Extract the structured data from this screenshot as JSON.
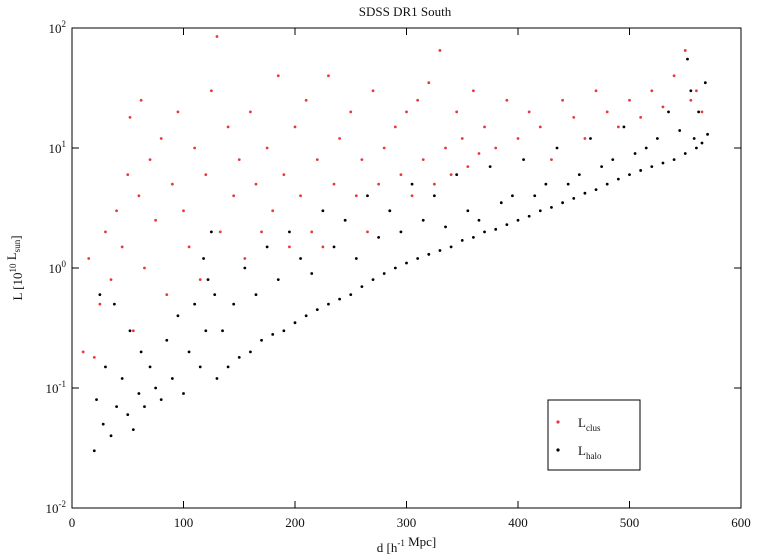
{
  "chart_data": {
    "type": "scatter",
    "title": "SDSS DR1 South",
    "xlabel": [
      {
        "text": "d [h"
      },
      {
        "text": "-1",
        "script": "super"
      },
      {
        "text": " Mpc]"
      }
    ],
    "ylabel": [
      {
        "text": "L [10"
      },
      {
        "text": "10",
        "script": "super"
      },
      {
        "text": " L"
      },
      {
        "text": "sun",
        "script": "sub"
      },
      {
        "text": "]"
      }
    ],
    "xlim": [
      0,
      600
    ],
    "xticks": [
      0,
      100,
      200,
      300,
      400,
      500,
      600
    ],
    "ylim": [
      0.01,
      100
    ],
    "ylog": true,
    "yticks": [
      {
        "value": 0.01,
        "label": "10",
        "exponent": "-2"
      },
      {
        "value": 0.1,
        "label": "10",
        "exponent": "-1"
      },
      {
        "value": 1,
        "label": "10",
        "exponent": "0"
      },
      {
        "value": 10,
        "label": "10",
        "exponent": "1"
      },
      {
        "value": 100,
        "label": "10",
        "exponent": "2"
      }
    ],
    "legend": "lower-right",
    "series": [
      {
        "name": "L",
        "name_sub": "clus",
        "color": "#e8383d",
        "x": [
          10,
          15,
          20,
          25,
          30,
          35,
          40,
          45,
          50,
          52,
          55,
          60,
          62,
          65,
          70,
          75,
          80,
          85,
          90,
          95,
          100,
          105,
          110,
          115,
          120,
          125,
          130,
          133,
          140,
          145,
          150,
          155,
          160,
          165,
          170,
          175,
          180,
          185,
          190,
          195,
          200,
          205,
          210,
          215,
          220,
          225,
          230,
          235,
          240,
          245,
          250,
          255,
          260,
          265,
          270,
          275,
          280,
          285,
          290,
          295,
          300,
          305,
          310,
          315,
          320,
          325,
          330,
          335,
          340,
          345,
          350,
          355,
          360,
          365,
          370,
          380,
          390,
          400,
          410,
          420,
          430,
          440,
          450,
          460,
          470,
          480,
          490,
          500,
          510,
          520,
          530,
          540,
          550,
          555,
          560,
          565
        ],
        "values": [
          0.2,
          1.2,
          0.18,
          0.5,
          2,
          0.8,
          3,
          1.5,
          6,
          18,
          0.3,
          4,
          25,
          1,
          8,
          2.5,
          12,
          0.6,
          5,
          20,
          3,
          1.5,
          10,
          0.8,
          6,
          30,
          85,
          2,
          15,
          4,
          8,
          1.2,
          20,
          5,
          2,
          10,
          3,
          40,
          6,
          1.5,
          15,
          4,
          25,
          2,
          8,
          1.5,
          40,
          5,
          12,
          2.5,
          20,
          4,
          8,
          2,
          30,
          5,
          10,
          3,
          15,
          6,
          20,
          4,
          25,
          8,
          35,
          5,
          65,
          10,
          6,
          20,
          12,
          7,
          30,
          9,
          15,
          10,
          25,
          12,
          20,
          15,
          8,
          25,
          18,
          12,
          30,
          20,
          15,
          25,
          18,
          30,
          22,
          40,
          65,
          25,
          30,
          20
        ]
      },
      {
        "name": "L",
        "name_sub": "halo",
        "color": "#000000",
        "x": [
          20,
          22,
          25,
          28,
          30,
          35,
          38,
          40,
          45,
          50,
          52,
          55,
          60,
          62,
          65,
          70,
          75,
          80,
          85,
          90,
          95,
          100,
          105,
          110,
          115,
          118,
          120,
          122,
          125,
          128,
          130,
          135,
          140,
          145,
          150,
          155,
          160,
          165,
          170,
          175,
          180,
          185,
          190,
          195,
          200,
          205,
          210,
          215,
          220,
          225,
          230,
          235,
          240,
          245,
          250,
          255,
          260,
          265,
          270,
          275,
          280,
          285,
          290,
          295,
          300,
          305,
          310,
          315,
          320,
          325,
          330,
          335,
          340,
          345,
          350,
          355,
          360,
          365,
          370,
          375,
          380,
          385,
          390,
          395,
          400,
          405,
          410,
          415,
          420,
          425,
          430,
          435,
          440,
          445,
          450,
          455,
          460,
          465,
          470,
          475,
          480,
          485,
          490,
          495,
          500,
          505,
          510,
          515,
          520,
          525,
          530,
          535,
          540,
          545,
          550,
          552,
          555,
          558,
          560,
          562,
          565,
          568,
          570
        ],
        "values": [
          0.03,
          0.08,
          0.6,
          0.05,
          0.15,
          0.04,
          0.5,
          0.07,
          0.12,
          0.06,
          0.3,
          0.045,
          0.09,
          0.2,
          0.07,
          0.15,
          0.1,
          0.08,
          0.25,
          0.12,
          0.4,
          0.09,
          0.2,
          0.5,
          0.15,
          1.2,
          0.3,
          0.8,
          2,
          0.6,
          0.12,
          0.3,
          0.15,
          0.5,
          0.18,
          1,
          0.2,
          0.6,
          0.25,
          1.5,
          0.28,
          0.8,
          0.3,
          2,
          0.35,
          1.2,
          0.4,
          0.9,
          0.45,
          3,
          0.5,
          1.5,
          0.55,
          2.5,
          0.6,
          1.2,
          0.7,
          4,
          0.8,
          1.8,
          0.9,
          3,
          1,
          2,
          1.1,
          5,
          1.2,
          2.5,
          1.3,
          4,
          1.4,
          2.2,
          1.5,
          6,
          1.7,
          3,
          1.8,
          2.5,
          2,
          7,
          2.1,
          3.5,
          2.3,
          4,
          2.5,
          8,
          2.7,
          4,
          3,
          5,
          3.2,
          10,
          3.5,
          5,
          3.8,
          6,
          4.2,
          12,
          4.5,
          7,
          5,
          8,
          5.5,
          15,
          6,
          9,
          6.5,
          10,
          7,
          12,
          7.5,
          20,
          8,
          14,
          9,
          55,
          30,
          12,
          10,
          20,
          11,
          35,
          13
        ]
      }
    ]
  }
}
